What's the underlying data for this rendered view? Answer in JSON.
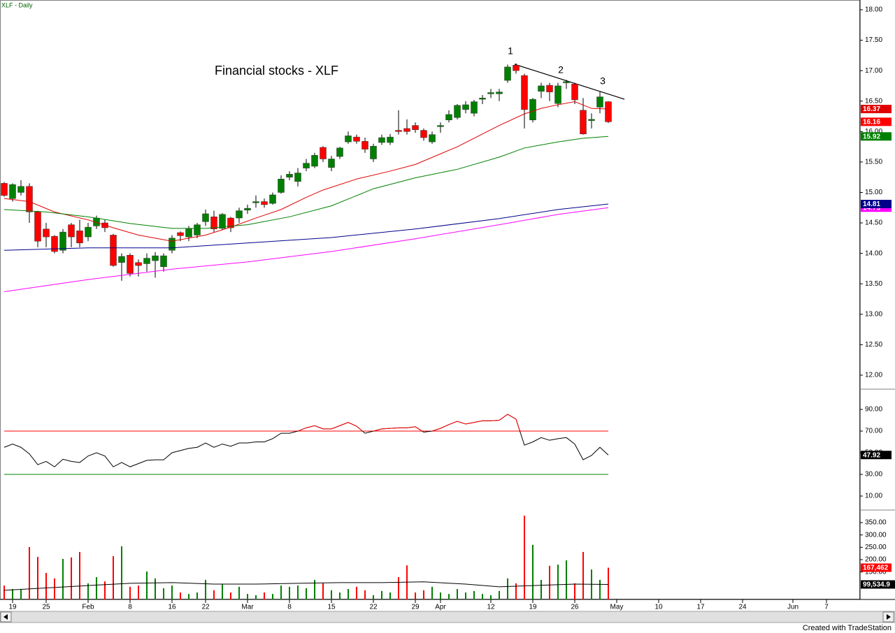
{
  "header": "XLF - Daily",
  "footer": "Created with TradeStation",
  "chart_data": [
    {
      "type": "candlestick",
      "title": "Financial stocks - XLF",
      "annotations": [
        "1",
        "2",
        "3"
      ],
      "ylim": [
        11.77,
        18.16
      ],
      "yticks": [
        {
          "value": 12,
          "label": "12.00"
        },
        {
          "value": 12.5,
          "label": "12.50"
        },
        {
          "value": 13,
          "label": "13.00"
        },
        {
          "value": 13.5,
          "label": "13.50"
        },
        {
          "value": 14,
          "label": "14.00"
        },
        {
          "value": 14.5,
          "label": "14.50"
        },
        {
          "value": 15,
          "label": "15.00"
        },
        {
          "value": 15.5,
          "label": "15.50"
        },
        {
          "value": 16,
          "label": "16.00"
        },
        {
          "value": 16.5,
          "label": "16.50"
        },
        {
          "value": 17,
          "label": "17.00"
        },
        {
          "value": 17.5,
          "label": "17.50"
        },
        {
          "value": 18,
          "label": "18.00"
        }
      ],
      "up_color": "#008000",
      "down_color": "#ff0000",
      "open": [
        15.15,
        14.9,
        15.0,
        15.1,
        14.68,
        14.4,
        14.28,
        14.05,
        14.47,
        14.37,
        14.27,
        14.45,
        14.5,
        14.3,
        13.85,
        13.97,
        13.85,
        13.83,
        13.88,
        13.78,
        14.05,
        14.34,
        14.27,
        14.3,
        14.52,
        14.6,
        14.41,
        14.58,
        14.58,
        14.71,
        14.83,
        14.85,
        14.82,
        15.0,
        15.25,
        15.18,
        15.4,
        15.43,
        15.74,
        15.41,
        15.59,
        15.83,
        15.91,
        15.84,
        15.55,
        15.82,
        15.82,
        16.02,
        16.05,
        16.1,
        16.02,
        15.83,
        16.08,
        16.19,
        16.23,
        16.36,
        16.3,
        16.53,
        16.62,
        16.62,
        16.84,
        17.09,
        16.92,
        16.19,
        16.66,
        16.76,
        16.46,
        16.8,
        16.78,
        16.35,
        16.18,
        16.4,
        16.49
      ],
      "high": [
        15.17,
        15.15,
        15.2,
        15.15,
        14.7,
        14.5,
        14.3,
        14.4,
        14.5,
        14.55,
        14.5,
        14.62,
        14.55,
        14.32,
        14.0,
        14.0,
        13.9,
        14.0,
        14.02,
        14.0,
        14.3,
        14.36,
        14.45,
        14.5,
        14.72,
        14.7,
        14.66,
        14.6,
        14.75,
        14.8,
        14.95,
        14.9,
        15.0,
        15.28,
        15.35,
        15.4,
        15.55,
        15.65,
        15.76,
        15.6,
        15.75,
        16.0,
        15.95,
        15.9,
        15.8,
        15.95,
        15.96,
        16.35,
        16.2,
        16.15,
        16.05,
        16.0,
        16.15,
        16.35,
        16.45,
        16.5,
        16.52,
        16.6,
        16.7,
        16.7,
        17.1,
        17.12,
        16.95,
        16.55,
        16.8,
        16.8,
        16.8,
        16.85,
        16.8,
        16.55,
        16.3,
        16.65,
        16.5
      ],
      "low": [
        14.93,
        14.85,
        14.95,
        14.5,
        14.1,
        14.1,
        14.0,
        14.0,
        14.1,
        14.1,
        14.2,
        14.4,
        14.35,
        13.78,
        13.55,
        13.62,
        13.62,
        13.7,
        13.6,
        13.7,
        14.0,
        14.2,
        14.2,
        14.25,
        14.45,
        14.35,
        14.38,
        14.35,
        14.5,
        14.65,
        14.75,
        14.75,
        14.8,
        14.98,
        15.2,
        15.1,
        15.35,
        15.4,
        15.5,
        15.35,
        15.55,
        15.8,
        15.8,
        15.65,
        15.5,
        15.78,
        15.78,
        15.95,
        15.95,
        15.98,
        15.85,
        15.8,
        15.98,
        16.15,
        16.2,
        16.3,
        16.25,
        16.45,
        16.55,
        16.5,
        16.8,
        16.95,
        16.05,
        16.15,
        16.55,
        16.5,
        16.4,
        16.7,
        16.45,
        15.95,
        16.05,
        16.3,
        16.14
      ],
      "close": [
        14.95,
        15.13,
        15.1,
        14.68,
        14.2,
        14.27,
        14.03,
        14.35,
        14.27,
        14.17,
        14.43,
        14.58,
        14.42,
        13.8,
        13.95,
        13.67,
        13.8,
        13.92,
        13.96,
        13.96,
        14.25,
        14.29,
        14.4,
        14.47,
        14.65,
        14.4,
        14.64,
        14.42,
        14.7,
        14.74,
        14.85,
        14.8,
        14.96,
        15.22,
        15.3,
        15.32,
        15.48,
        15.61,
        15.55,
        15.55,
        15.73,
        15.93,
        15.84,
        15.71,
        15.76,
        15.9,
        15.91,
        16.0,
        16.0,
        16.03,
        15.9,
        15.95,
        16.1,
        16.28,
        16.43,
        16.44,
        16.49,
        16.55,
        16.64,
        16.65,
        17.06,
        17.0,
        16.36,
        16.53,
        16.75,
        16.65,
        16.75,
        16.82,
        16.52,
        15.96,
        16.2,
        16.57,
        16.16
      ],
      "overlays": [
        {
          "color": "#e00000",
          "x": [
            0,
            3,
            6,
            10,
            13,
            16,
            20,
            24,
            27,
            30,
            33,
            36,
            38,
            42,
            46,
            49,
            54,
            59,
            62,
            64,
            66,
            68,
            70,
            72
          ],
          "values": [
            14.9,
            14.85,
            14.68,
            14.55,
            14.42,
            14.3,
            14.2,
            14.3,
            14.43,
            14.58,
            14.72,
            14.92,
            15.04,
            15.22,
            15.35,
            15.46,
            15.75,
            16.1,
            16.29,
            16.38,
            16.44,
            16.49,
            16.38,
            16.37
          ]
        },
        {
          "color": "#008000",
          "x": [
            0,
            5,
            10,
            15,
            20,
            24,
            29,
            34,
            39,
            44,
            49,
            54,
            59,
            62,
            66,
            69,
            72
          ],
          "values": [
            14.72,
            14.68,
            14.6,
            14.49,
            14.41,
            14.41,
            14.47,
            14.6,
            14.78,
            15.06,
            15.24,
            15.38,
            15.58,
            15.73,
            15.83,
            15.89,
            15.92
          ]
        },
        {
          "color": "#ff00ff",
          "x": [
            0,
            10,
            20,
            29,
            39,
            49,
            59,
            66,
            72
          ],
          "values": [
            13.37,
            13.57,
            13.74,
            13.86,
            14.03,
            14.24,
            14.47,
            14.64,
            14.75
          ]
        },
        {
          "color": "#00008b",
          "x": [
            0,
            10,
            20,
            29,
            39,
            49,
            59,
            66,
            72
          ],
          "values": [
            14.05,
            14.09,
            14.09,
            14.17,
            14.26,
            14.4,
            14.57,
            14.72,
            14.81
          ]
        }
      ]
    },
    {
      "type": "line",
      "color": "#000000",
      "overbought_color": "#ff0000",
      "ylim": [
        -2.9,
        108.7
      ],
      "yticks": [
        {
          "value": 10,
          "label": "10.00"
        },
        {
          "value": 30,
          "label": "30.00"
        },
        {
          "value": 50,
          "label": "50.00"
        },
        {
          "value": 70,
          "label": "70.00"
        },
        {
          "value": 90,
          "label": "90.00"
        }
      ],
      "levels": [
        {
          "value": 70,
          "color": "#ff0000"
        },
        {
          "value": 30,
          "color": "#008000"
        }
      ],
      "values": [
        55,
        58,
        55,
        49,
        39,
        42,
        37,
        44,
        42,
        41,
        47,
        50,
        47,
        37,
        41,
        37,
        40,
        43,
        43.5,
        43.5,
        50,
        52,
        54,
        55,
        59,
        55,
        58,
        56,
        59,
        59,
        60,
        60,
        63,
        68,
        68,
        70,
        73,
        75,
        72,
        72,
        75,
        78,
        74.5,
        68,
        70,
        72,
        72.5,
        73,
        73,
        74,
        69,
        70,
        72.5,
        76,
        79,
        76.5,
        78,
        79.5,
        79.5,
        80,
        85.5,
        81,
        57,
        60,
        64,
        61.5,
        63,
        64,
        58,
        43.5,
        47.5,
        55,
        47.92
      ]
    },
    {
      "type": "bar",
      "ylim": [
        38.7,
        400.9
      ],
      "yticks": [
        {
          "value": 150,
          "label": "150.00"
        },
        {
          "value": 200,
          "label": "200.00"
        },
        {
          "value": 250,
          "label": "250.00"
        },
        {
          "value": 300,
          "label": "300.00"
        },
        {
          "value": 350,
          "label": "350.00"
        }
      ],
      "xlim": [
        -0.5,
        102
      ],
      "xticks": [
        {
          "value": 1,
          "label": "19"
        },
        {
          "value": 5,
          "label": "25"
        },
        {
          "value": 10,
          "label": "Feb"
        },
        {
          "value": 15,
          "label": "8"
        },
        {
          "value": 20,
          "label": "16"
        },
        {
          "value": 24,
          "label": "22"
        },
        {
          "value": 29,
          "label": "Mar"
        },
        {
          "value": 34,
          "label": "8"
        },
        {
          "value": 39,
          "label": "15"
        },
        {
          "value": 44,
          "label": "22"
        },
        {
          "value": 49,
          "label": "29"
        },
        {
          "value": 52,
          "label": "Apr"
        },
        {
          "value": 58,
          "label": "12"
        },
        {
          "value": 63,
          "label": "19"
        },
        {
          "value": 68,
          "label": "26"
        },
        {
          "value": 73,
          "label": "May"
        },
        {
          "value": 78,
          "label": "10"
        },
        {
          "value": 83,
          "label": "17"
        },
        {
          "value": 88,
          "label": "24"
        },
        {
          "value": 94,
          "label": "Jun"
        },
        {
          "value": 98,
          "label": "7"
        }
      ],
      "values": [
        95,
        81,
        81,
        251,
        211,
        146,
        124,
        203,
        209,
        231,
        104,
        129,
        112,
        214,
        254,
        90,
        95,
        152,
        124,
        84,
        95,
        67,
        61,
        67,
        118,
        76,
        101,
        67,
        90,
        61,
        56,
        67,
        61,
        95,
        90,
        95,
        84,
        118,
        104,
        76,
        67,
        81,
        90,
        76,
        56,
        73,
        67,
        129,
        177,
        67,
        76,
        90,
        67,
        61,
        81,
        67,
        73,
        61,
        56,
        73,
        124,
        104,
        378,
        260,
        118,
        175,
        180,
        197,
        104,
        231,
        160,
        118,
        167.462
      ],
      "value_labels": [
        null,
        null,
        null,
        null,
        null,
        null,
        null,
        null,
        null,
        null,
        null,
        null,
        null,
        null,
        null,
        null,
        null,
        null,
        null,
        null,
        null,
        null,
        null,
        null,
        null,
        null,
        null,
        null,
        null,
        null,
        null,
        null,
        null,
        null,
        null,
        null,
        null,
        null,
        null,
        null,
        null,
        null,
        null,
        null,
        null,
        null,
        null,
        null,
        null,
        null,
        null,
        null,
        null,
        null,
        null,
        null,
        null,
        null,
        null,
        null,
        null,
        null,
        null,
        null,
        null,
        null,
        null,
        null,
        null,
        null,
        null,
        null,
        "167,462"
      ],
      "label_color": "#ff0000",
      "average": {
        "color": "#000000",
        "x": [
          0,
          10,
          15,
          20,
          25,
          30,
          35,
          40,
          45,
          50,
          55,
          59,
          63,
          68,
          72
        ],
        "values": [
          76,
          95,
          104,
          107,
          101,
          101,
          104,
          107,
          107,
          110,
          101,
          90,
          95,
          101,
          99.5349
        ],
        "value_labels": [
          null,
          null,
          null,
          null,
          null,
          null,
          null,
          null,
          null,
          null,
          null,
          null,
          null,
          null,
          "99,534.9"
        ]
      }
    }
  ]
}
